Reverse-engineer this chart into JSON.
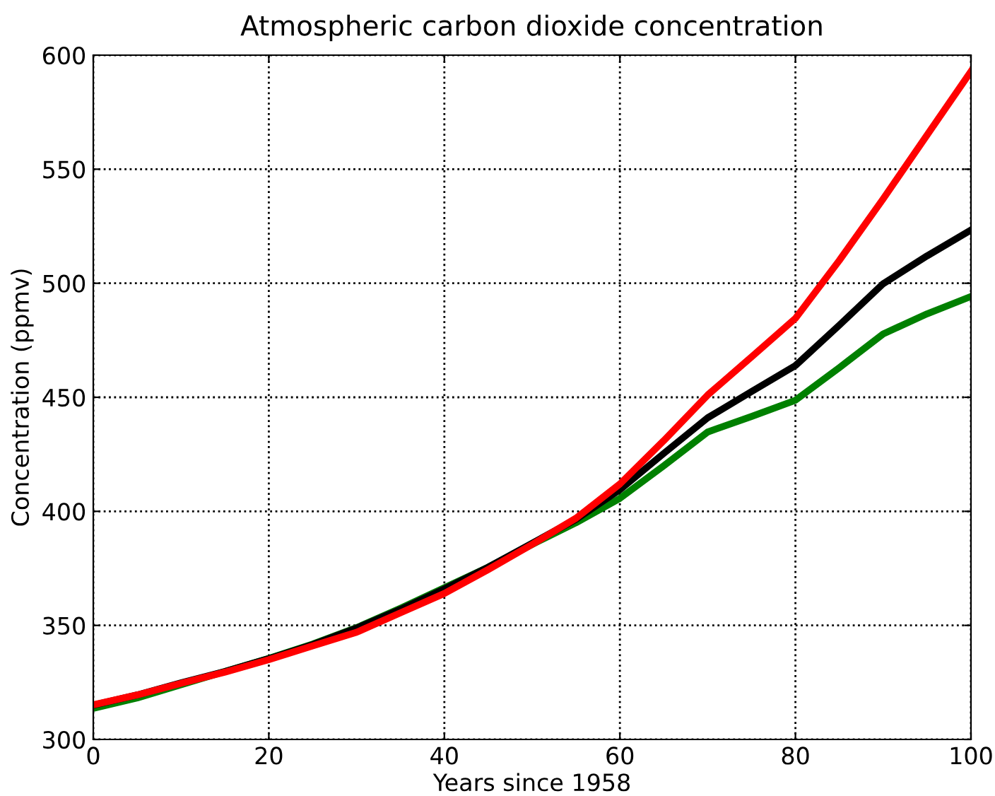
{
  "chart_data": {
    "type": "line",
    "title": "Atmospheric carbon dioxide concentration",
    "xlabel": "Years since 1958",
    "ylabel": "Concentration (ppmv)",
    "x": [
      0,
      5,
      10,
      15,
      20,
      25,
      30,
      35,
      40,
      45,
      50,
      55,
      60,
      65,
      70,
      75,
      80,
      85,
      90,
      95,
      100
    ],
    "series": [
      {
        "color": "#008000",
        "values": [
          313.6,
          318.2,
          324,
          329.8,
          335.5,
          341.8,
          349,
          357.5,
          366.5,
          375.5,
          385.5,
          395,
          405.7,
          420,
          434.8,
          441.6,
          448.7,
          463,
          477.8,
          486.6,
          494.2
        ]
      },
      {
        "color": "#000000",
        "values": [
          315,
          319.5,
          324.8,
          329.8,
          335.4,
          341.6,
          348.8,
          357,
          366,
          375.5,
          386,
          396.5,
          409.5,
          425.4,
          441,
          452.5,
          463.9,
          481.6,
          499.8,
          512,
          523.3
        ]
      },
      {
        "color": "#ff0000",
        "values": [
          315.2,
          319.5,
          324.6,
          329.5,
          335,
          341,
          347,
          355.5,
          364,
          374.5,
          385.5,
          397,
          412,
          431,
          451,
          467.7,
          484.6,
          510,
          537,
          565,
          592.9
        ]
      }
    ],
    "xlim": [
      0,
      100
    ],
    "xticks": [
      0,
      20,
      40,
      60,
      80,
      100
    ],
    "ylim": [
      300,
      600
    ],
    "yticks": [
      300,
      350,
      400,
      450,
      500,
      550,
      600
    ],
    "grid": true,
    "line_style": "solid",
    "marker": "none"
  }
}
